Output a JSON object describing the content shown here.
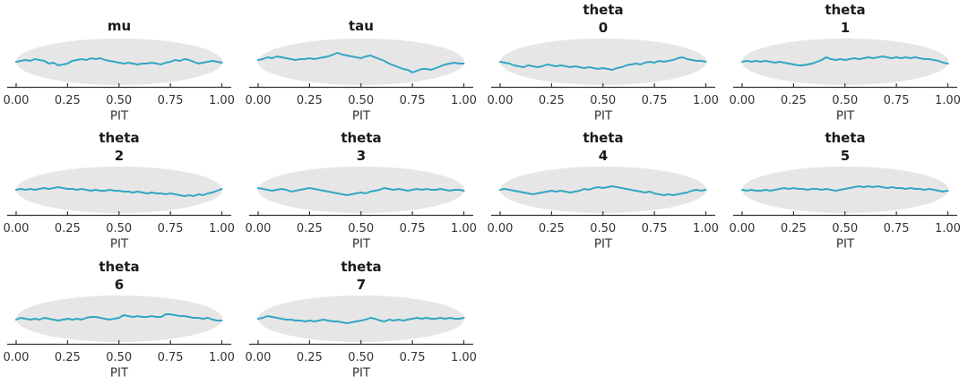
{
  "figure": {
    "background_color": "#ffffff",
    "line_color": "#31a6c4",
    "envelope_color": "#e6e6e6",
    "title_color": "#1a1a1a",
    "axis_color": "#333333",
    "tick_label_color": "#333333"
  },
  "chart_data": {
    "type": "line",
    "title": "",
    "xlabel": "PIT",
    "x_ticks_labels": [
      "0.00",
      "0.25",
      "0.50",
      "0.75",
      "1.00"
    ],
    "x_tick_values": [
      0,
      0.25,
      0.5,
      0.75,
      1.0
    ],
    "x_range": [
      0,
      1
    ],
    "grid": false,
    "legend": false,
    "y_units": "deviation of PIT ECDF from uniform (arbitrary units; figure has no y-axis; envelope half-height = 26 units)",
    "envelope": {
      "shape": "ellipse",
      "half_height": 26,
      "meaning": "simultaneous confidence band"
    },
    "n_points_per_series": 45,
    "x_spacing": "uniform on [0,1]",
    "layout": {
      "columns": 4,
      "rows": 3,
      "filled_cells": 10
    },
    "panels": [
      {
        "title": "mu",
        "title_lines": [
          "mu"
        ],
        "values": [
          0,
          1,
          2,
          1,
          3,
          2,
          1,
          -2,
          -1,
          -4,
          -3,
          -2,
          1,
          2,
          3,
          2,
          4,
          3,
          4,
          2,
          1,
          0,
          -1,
          -2,
          -1,
          -2,
          -3,
          -2,
          -2,
          -1,
          -2,
          -3,
          -1,
          0,
          2,
          1,
          3,
          2,
          0,
          -2,
          -1,
          0,
          1,
          0,
          -1
        ]
      },
      {
        "title": "tau",
        "title_lines": [
          "tau"
        ],
        "values": [
          2,
          3,
          5,
          4,
          6,
          5,
          4,
          3,
          2,
          3,
          3,
          4,
          3,
          4,
          5,
          6,
          8,
          10,
          8,
          7,
          6,
          5,
          4,
          6,
          7,
          5,
          3,
          1,
          -2,
          -4,
          -6,
          -8,
          -9,
          -12,
          -10,
          -8,
          -8,
          -9,
          -7,
          -5,
          -3,
          -2,
          -1,
          -2,
          -2
        ]
      },
      {
        "title": "theta 0",
        "title_lines": [
          "theta",
          "0"
        ],
        "values": [
          0,
          -1,
          -2,
          -4,
          -5,
          -6,
          -4,
          -5,
          -6,
          -5,
          -3,
          -4,
          -5,
          -4,
          -5,
          -6,
          -5,
          -6,
          -7,
          -6,
          -7,
          -8,
          -7,
          -8,
          -9,
          -7,
          -6,
          -4,
          -3,
          -2,
          -3,
          -1,
          0,
          -1,
          1,
          0,
          1,
          2,
          4,
          5,
          3,
          2,
          1,
          1,
          0
        ]
      },
      {
        "title": "theta 1",
        "title_lines": [
          "theta",
          "1"
        ],
        "values": [
          0,
          1,
          0,
          1,
          0,
          1,
          0,
          -1,
          0,
          -1,
          -2,
          -3,
          -4,
          -4,
          -3,
          -2,
          0,
          2,
          5,
          3,
          2,
          3,
          2,
          3,
          4,
          3,
          4,
          5,
          4,
          5,
          6,
          5,
          4,
          5,
          4,
          5,
          4,
          5,
          4,
          3,
          3,
          2,
          1,
          -1,
          -2
        ]
      },
      {
        "title": "theta 2",
        "title_lines": [
          "theta",
          "2"
        ],
        "values": [
          0,
          1,
          0,
          1,
          0,
          1,
          2,
          1,
          2,
          3,
          2,
          1,
          1,
          0,
          1,
          0,
          -1,
          0,
          -1,
          -1,
          0,
          -1,
          -1,
          -2,
          -2,
          -3,
          -2,
          -3,
          -4,
          -3,
          -4,
          -4,
          -5,
          -4,
          -5,
          -6,
          -7,
          -6,
          -7,
          -5,
          -6,
          -4,
          -3,
          -1,
          1
        ]
      },
      {
        "title": "theta 3",
        "title_lines": [
          "theta",
          "3"
        ],
        "values": [
          2,
          1,
          0,
          -1,
          0,
          1,
          0,
          -2,
          -1,
          0,
          1,
          2,
          1,
          0,
          -1,
          -2,
          -3,
          -4,
          -5,
          -6,
          -5,
          -4,
          -3,
          -4,
          -2,
          -1,
          0,
          2,
          1,
          0,
          1,
          0,
          -1,
          0,
          1,
          0,
          1,
          0,
          0,
          1,
          0,
          -1,
          0,
          0,
          -1
        ]
      },
      {
        "title": "theta 4",
        "title_lines": [
          "theta",
          "4"
        ],
        "values": [
          0,
          1,
          0,
          -1,
          -2,
          -3,
          -4,
          -5,
          -4,
          -3,
          -2,
          -1,
          -2,
          -1,
          -2,
          -3,
          -2,
          -1,
          1,
          0,
          2,
          3,
          2,
          3,
          4,
          3,
          2,
          1,
          0,
          -1,
          -2,
          -3,
          -2,
          -4,
          -5,
          -6,
          -5,
          -6,
          -5,
          -4,
          -3,
          -1,
          0,
          -1,
          0
        ]
      },
      {
        "title": "theta 5",
        "title_lines": [
          "theta",
          "5"
        ],
        "values": [
          0,
          -1,
          0,
          -1,
          -1,
          0,
          -1,
          0,
          1,
          2,
          1,
          2,
          1,
          1,
          0,
          1,
          1,
          0,
          1,
          0,
          -1,
          0,
          1,
          2,
          3,
          4,
          3,
          4,
          3,
          4,
          3,
          2,
          3,
          2,
          2,
          1,
          2,
          1,
          1,
          0,
          1,
          0,
          -1,
          -2,
          -1
        ]
      },
      {
        "title": "theta 6",
        "title_lines": [
          "theta",
          "6"
        ],
        "values": [
          -1,
          1,
          0,
          -1,
          0,
          -1,
          1,
          0,
          -1,
          -2,
          -1,
          0,
          -1,
          0,
          -1,
          1,
          2,
          2,
          1,
          0,
          -1,
          0,
          1,
          4,
          3,
          2,
          3,
          2,
          2,
          3,
          2,
          2,
          5,
          5,
          4,
          3,
          3,
          2,
          1,
          1,
          0,
          1,
          -1,
          -2,
          -2
        ]
      },
      {
        "title": "theta 7",
        "title_lines": [
          "theta",
          "7"
        ],
        "values": [
          0,
          1,
          3,
          2,
          1,
          0,
          -1,
          -1,
          -2,
          -2,
          -3,
          -2,
          -3,
          -2,
          -1,
          -2,
          -3,
          -3,
          -4,
          -5,
          -4,
          -3,
          -2,
          -1,
          1,
          0,
          -2,
          -3,
          -1,
          -2,
          -1,
          -2,
          -1,
          0,
          1,
          0,
          1,
          0,
          0,
          1,
          0,
          1,
          0,
          0,
          1
        ]
      }
    ]
  }
}
